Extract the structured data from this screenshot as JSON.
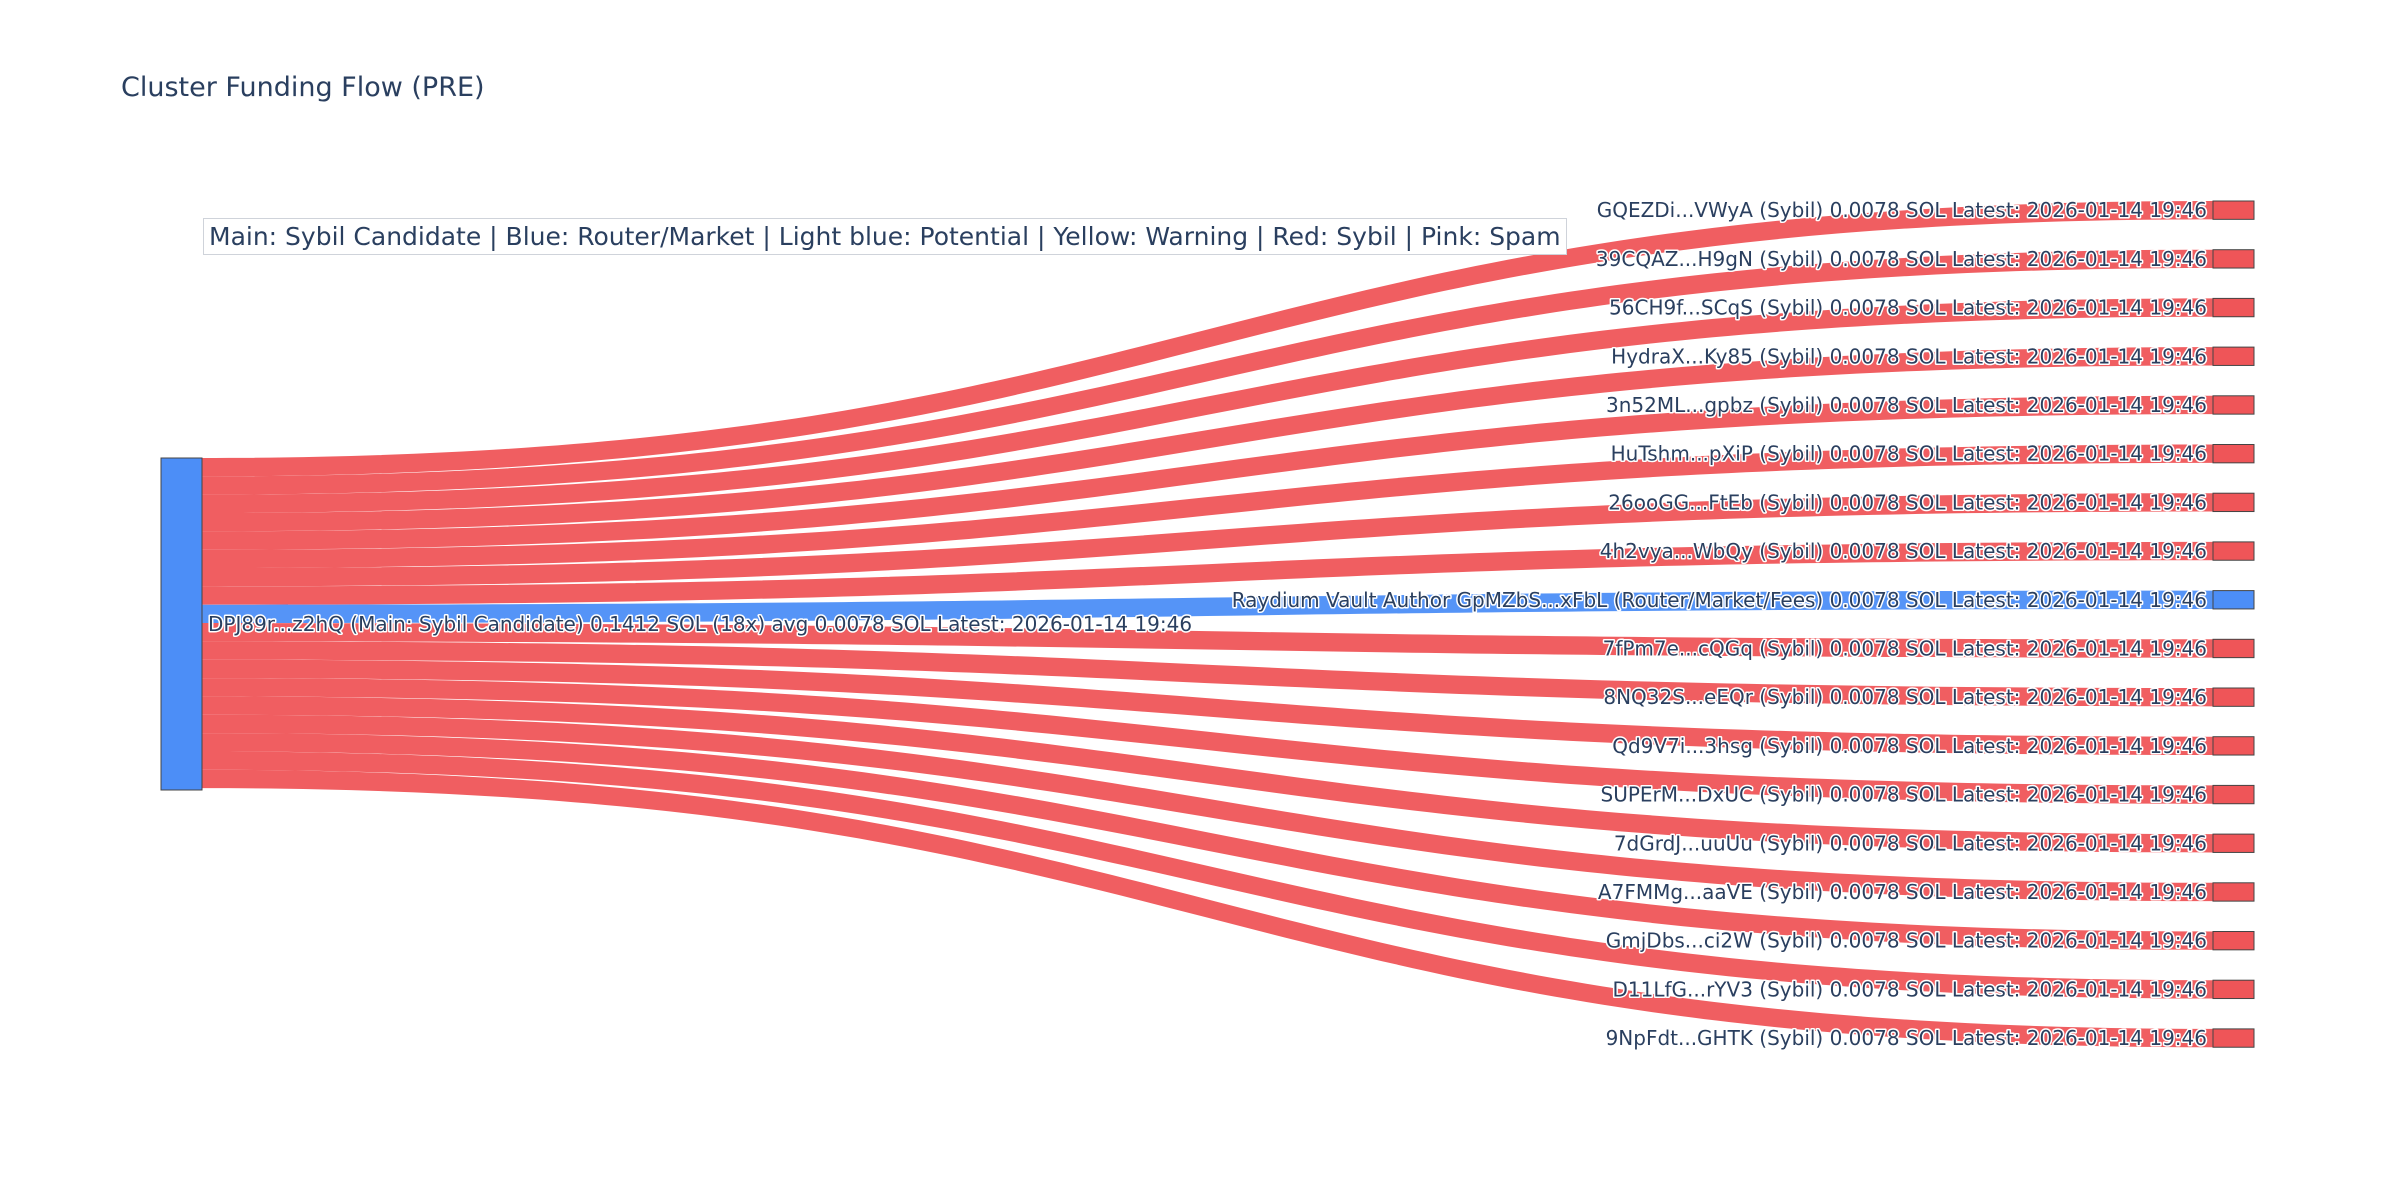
{
  "chart_data": {
    "type": "sankey",
    "title": "Cluster Funding Flow (PRE)",
    "legend_text": "Main: Sybil Candidate  |  Blue: Router/Market | Light blue: Potential | Yellow: Warning | Red: Sybil | Pink: Spam",
    "colors": {
      "sybil": "#ef5558",
      "router": "#4c8ef7",
      "main": "#4c8ef7"
    },
    "source": {
      "label": "DPJ89r...z2hQ (Main: Sybil Candidate) 0.1412 SOL (18x) avg 0.0078 SOL Latest: 2026-01-14 19:46",
      "category": "main",
      "total": 0.1412
    },
    "targets": [
      {
        "label": "GQEZDi...VWyA (Sybil) 0.0078 SOL Latest: 2026-01-14 19:46",
        "category": "sybil",
        "value": 0.0078
      },
      {
        "label": "39CQAZ...H9gN (Sybil) 0.0078 SOL Latest: 2026-01-14 19:46",
        "category": "sybil",
        "value": 0.0078
      },
      {
        "label": "56CH9f...SCqS (Sybil) 0.0078 SOL Latest: 2026-01-14 19:46",
        "category": "sybil",
        "value": 0.0078
      },
      {
        "label": "HydraX...Ky85 (Sybil) 0.0078 SOL Latest: 2026-01-14 19:46",
        "category": "sybil",
        "value": 0.0078
      },
      {
        "label": "3n52ML...gpbz (Sybil) 0.0078 SOL Latest: 2026-01-14 19:46",
        "category": "sybil",
        "value": 0.0078
      },
      {
        "label": "HuTshm...pXiP (Sybil) 0.0078 SOL Latest: 2026-01-14 19:46",
        "category": "sybil",
        "value": 0.0078
      },
      {
        "label": "26ooGG...FtEb (Sybil) 0.0078 SOL Latest: 2026-01-14 19:46",
        "category": "sybil",
        "value": 0.0078
      },
      {
        "label": "4h2vya...WbQy (Sybil) 0.0078 SOL Latest: 2026-01-14 19:46",
        "category": "sybil",
        "value": 0.0078
      },
      {
        "label": "Raydium Vault Author GpMZbS...xFbL (Router/Market/Fees) 0.0078 SOL Latest: 2026-01-14 19:46",
        "category": "router",
        "value": 0.0078
      },
      {
        "label": "7fPm7e...cQGq (Sybil) 0.0078 SOL Latest: 2026-01-14 19:46",
        "category": "sybil",
        "value": 0.0078
      },
      {
        "label": "8NQ32S...eEQr (Sybil) 0.0078 SOL Latest: 2026-01-14 19:46",
        "category": "sybil",
        "value": 0.0078
      },
      {
        "label": "Qd9V7i...3hsg (Sybil) 0.0078 SOL Latest: 2026-01-14 19:46",
        "category": "sybil",
        "value": 0.0078
      },
      {
        "label": "SUPErM...DxUC (Sybil) 0.0078 SOL Latest: 2026-01-14 19:46",
        "category": "sybil",
        "value": 0.0078
      },
      {
        "label": "7dGrdJ...uuUu (Sybil) 0.0078 SOL Latest: 2026-01-14 19:46",
        "category": "sybil",
        "value": 0.0078
      },
      {
        "label": "A7FMMg...aaVE (Sybil) 0.0078 SOL Latest: 2026-01-14 19:46",
        "category": "sybil",
        "value": 0.0078
      },
      {
        "label": "GmjDbs...ci2W (Sybil) 0.0078 SOL Latest: 2026-01-14 19:46",
        "category": "sybil",
        "value": 0.0078
      },
      {
        "label": "D11LfG...rYV3 (Sybil) 0.0078 SOL Latest: 2026-01-14 19:46",
        "category": "sybil",
        "value": 0.0078
      },
      {
        "label": "9NpFdt...GHTK (Sybil) 0.0078 SOL Latest: 2026-01-14 19:46",
        "category": "sybil",
        "value": 0.0078
      }
    ]
  }
}
